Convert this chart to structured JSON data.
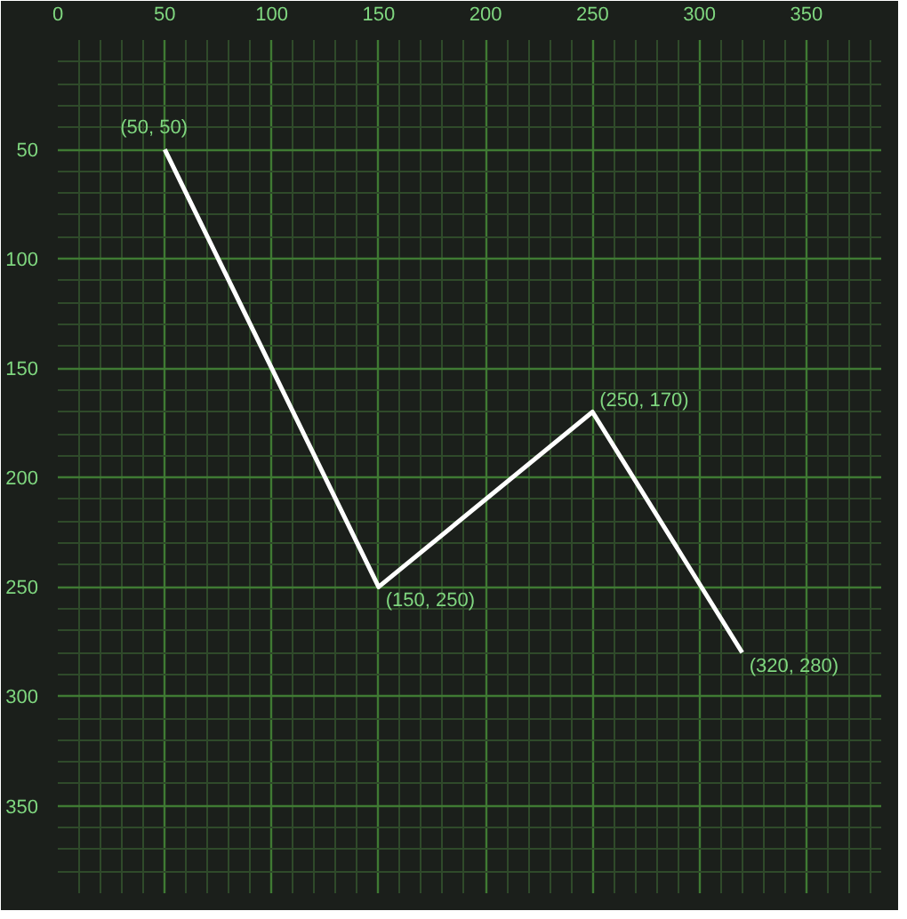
{
  "chart_data": {
    "type": "line",
    "x": [
      50,
      150,
      250,
      320
    ],
    "series": [
      {
        "color": "#ffffff",
        "values": [
          50,
          250,
          170,
          280
        ]
      }
    ],
    "xlim": [
      0,
      385
    ],
    "ylim": [
      390,
      0
    ],
    "xticks": [
      0,
      50,
      100,
      150,
      200,
      250,
      300,
      350
    ],
    "yticks": [
      50,
      100,
      150,
      200,
      250,
      300,
      350
    ],
    "grid": true,
    "marker": "none",
    "line_style": "solid",
    "annotations": [
      {
        "text": "(50, 50)",
        "x": 50,
        "y": 50
      },
      {
        "text": "(150, 250)",
        "x": 150,
        "y": 250
      },
      {
        "text": "(250, 170)",
        "x": 250,
        "y": 170
      },
      {
        "text": "(320, 280)",
        "x": 320,
        "y": 280
      }
    ]
  }
}
